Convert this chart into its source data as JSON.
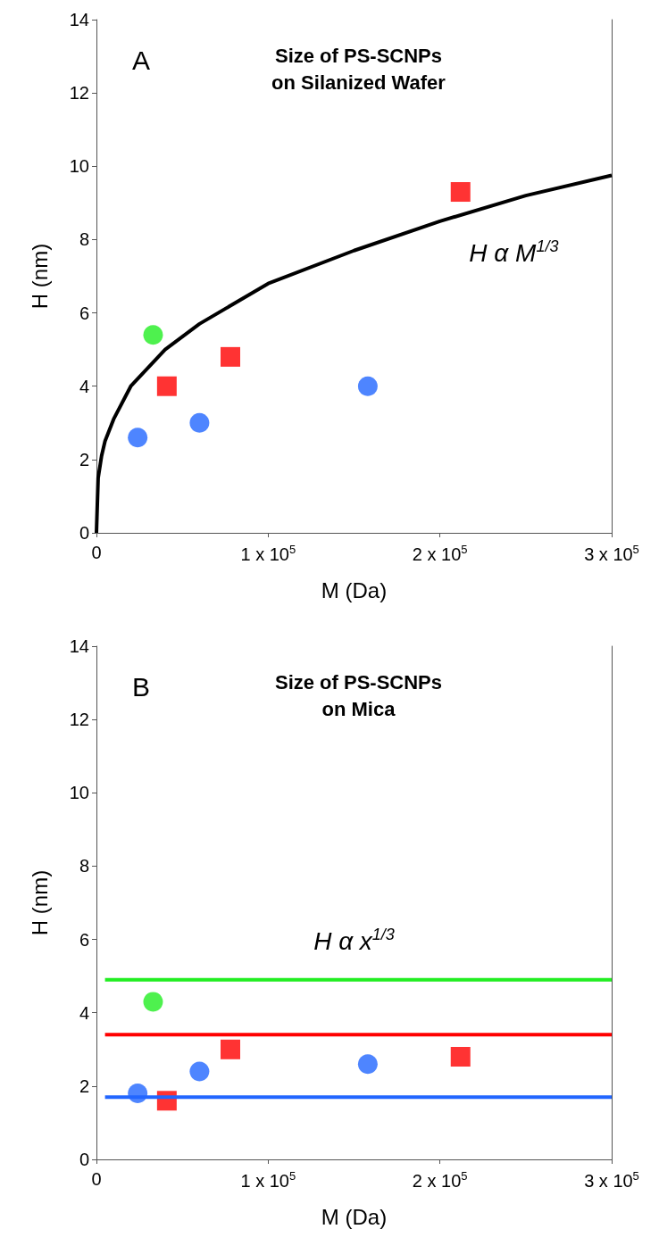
{
  "chart_data": [
    {
      "type": "scatter",
      "title": "Size of PS-SCNPs\non Silanized Wafer",
      "xlabel": "M (Da)",
      "ylabel": "H (nm)",
      "annotations": [
        "A",
        "H α M$^{1/3}$"
      ],
      "xlim": [
        0,
        300000
      ],
      "xticks": [
        0,
        {
          "value": 100000,
          "label": "1 x 10$^{5}$"
        },
        {
          "value": 200000,
          "label": "2 x 10$^{5}$"
        },
        {
          "value": 300000,
          "label": "3 x 10$^{5}$"
        }
      ],
      "ylim": [
        0,
        14
      ],
      "yticks": [
        0,
        2,
        4,
        6,
        8,
        10,
        12,
        14
      ],
      "series": [
        {
          "type": "line",
          "color": "#000000",
          "marker": "none",
          "x": [
            0,
            1000,
            3000,
            5000,
            10000,
            20000,
            40000,
            60000,
            100000,
            150000,
            200000,
            250000,
            300000
          ],
          "values": [
            0,
            1.5,
            2.1,
            2.5,
            3.1,
            4.0,
            5.0,
            5.7,
            6.8,
            7.7,
            8.5,
            9.2,
            9.75
          ]
        },
        {
          "color": "#2266ff",
          "marker": "circle",
          "x": [
            24000,
            60000,
            158000
          ],
          "values": [
            2.6,
            3.0,
            4.0
          ]
        },
        {
          "color": "#ff0000",
          "marker": "square",
          "x": [
            41000,
            78000,
            212000
          ],
          "values": [
            4.0,
            4.8,
            9.3
          ]
        },
        {
          "color": "#22ee22",
          "marker": "circle",
          "x": [
            33000
          ],
          "values": [
            5.4
          ]
        }
      ]
    },
    {
      "type": "scatter",
      "title": "Size of PS-SCNPs\non Mica",
      "xlabel": "M (Da)",
      "ylabel": "H (nm)",
      "annotations": [
        "B",
        "H α x$^{1/3}$"
      ],
      "xlim": [
        0,
        300000
      ],
      "xticks": [
        0,
        {
          "value": 100000,
          "label": "1 x 10$^{5}$"
        },
        {
          "value": 200000,
          "label": "2 x 10$^{5}$"
        },
        {
          "value": 300000,
          "label": "3 x 10$^{5}$"
        }
      ],
      "ylim": [
        0,
        14
      ],
      "yticks": [
        0,
        2,
        4,
        6,
        8,
        10,
        12,
        14
      ],
      "series": [
        {
          "type": "line",
          "color": "#22ee22",
          "marker": "none",
          "x": [
            5000,
            300000
          ],
          "values": [
            4.9,
            4.9
          ]
        },
        {
          "type": "line",
          "color": "#ff0000",
          "marker": "none",
          "x": [
            5000,
            300000
          ],
          "values": [
            3.4,
            3.4
          ]
        },
        {
          "type": "line",
          "color": "#2266ff",
          "marker": "none",
          "x": [
            5000,
            300000
          ],
          "values": [
            1.7,
            1.7
          ]
        },
        {
          "color": "#2266ff",
          "marker": "circle",
          "x": [
            24000,
            60000,
            158000
          ],
          "values": [
            1.8,
            2.4,
            2.6
          ]
        },
        {
          "color": "#ff0000",
          "marker": "square",
          "x": [
            41000,
            78000,
            212000
          ],
          "values": [
            1.6,
            3.0,
            2.8
          ]
        },
        {
          "color": "#22ee22",
          "marker": "circle",
          "x": [
            33000
          ],
          "values": [
            4.3
          ]
        }
      ]
    }
  ]
}
